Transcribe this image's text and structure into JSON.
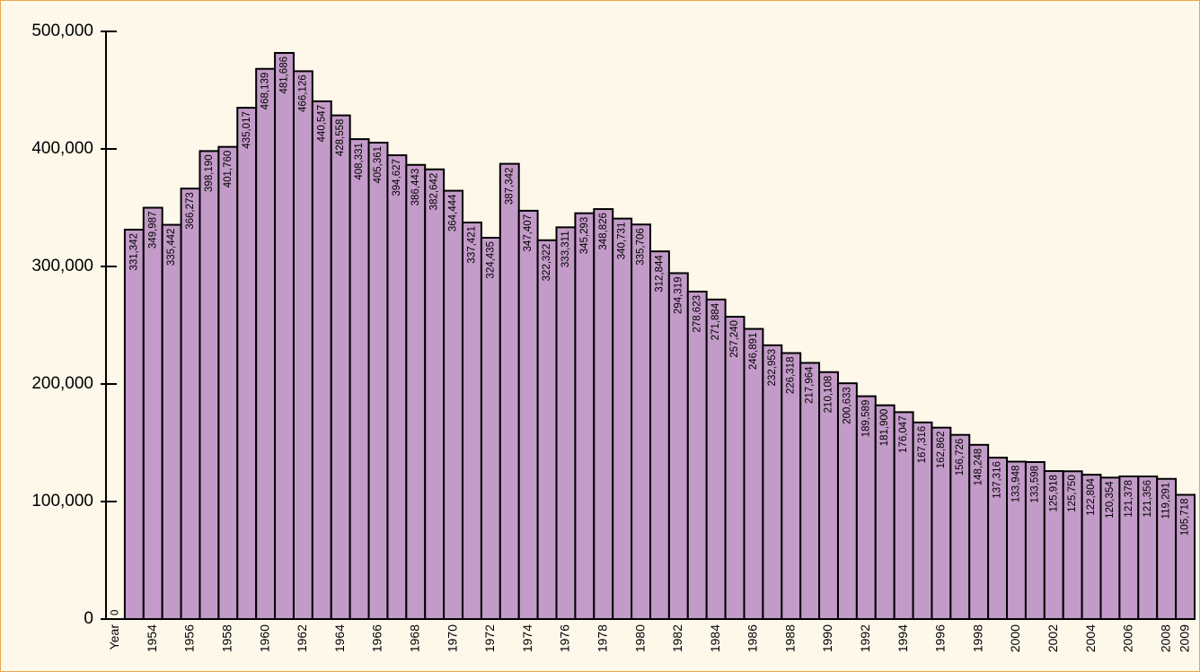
{
  "chart_data": {
    "type": "bar",
    "categories": [
      "Year",
      null,
      "1954",
      null,
      "1956",
      null,
      "1958",
      null,
      "1960",
      null,
      "1962",
      null,
      "1964",
      null,
      "1966",
      null,
      "1968",
      null,
      "1970",
      null,
      "1972",
      null,
      "1974",
      null,
      "1976",
      null,
      "1978",
      null,
      "1980",
      null,
      "1982",
      null,
      "1984",
      null,
      "1986",
      null,
      "1988",
      null,
      "1990",
      null,
      "1992",
      null,
      "1994",
      null,
      "1996",
      null,
      "1998",
      null,
      "2000",
      null,
      "2002",
      null,
      "2004",
      null,
      "2006",
      null,
      "2008",
      "2009"
    ],
    "values": [
      0,
      331342,
      349987,
      335442,
      366273,
      398190,
      401760,
      435017,
      468139,
      481686,
      466126,
      440547,
      428558,
      408331,
      405361,
      394627,
      386443,
      382642,
      364444,
      337421,
      324435,
      387342,
      347407,
      322322,
      333311,
      345293,
      348826,
      340731,
      335706,
      312844,
      294319,
      278623,
      271884,
      257240,
      246891,
      232953,
      226318,
      217964,
      210108,
      200633,
      189589,
      181900,
      176047,
      167316,
      162862,
      156726,
      148248,
      137316,
      133948,
      133598,
      125918,
      125750,
      122804,
      120354,
      121378,
      121356,
      119291,
      105718
    ],
    "value_labels": [
      "0",
      "331,342",
      "349,987",
      "335,442",
      "366,273",
      "398,190",
      "401,760",
      "435,017",
      "468,139",
      "481,686",
      "466,126",
      "440,547",
      "428,558",
      "408,331",
      "405,361",
      "394,627",
      "386,443",
      "382,642",
      "364,444",
      "337,421",
      "324,435",
      "387,342",
      "347,407",
      "322,322",
      "333,311",
      "345,293",
      "348,826",
      "340,731",
      "335,706",
      "312,844",
      "294,319",
      "278,623",
      "271,884",
      "257,240",
      "246,891",
      "232,953",
      "226,318",
      "217,964",
      "210,108",
      "200,633",
      "189,589",
      "181,900",
      "176,047",
      "167,316",
      "162,862",
      "156,726",
      "148,248",
      "137,316",
      "133,948",
      "133,598",
      "125,918",
      "125,750",
      "122,804",
      "120,354",
      "121,378",
      "121,356",
      "119,291",
      "105,718"
    ],
    "color": "#c39bc8",
    "ylim": [
      0,
      500000
    ],
    "yticks": [
      0,
      {
        "value": 100000,
        "label": "100,000"
      },
      {
        "value": 200000,
        "label": "200,000"
      },
      {
        "value": 300000,
        "label": "300,000"
      },
      {
        "value": 400000,
        "label": "400,000"
      },
      {
        "value": 500000,
        "label": "500,000"
      }
    ],
    "grid": false
  }
}
